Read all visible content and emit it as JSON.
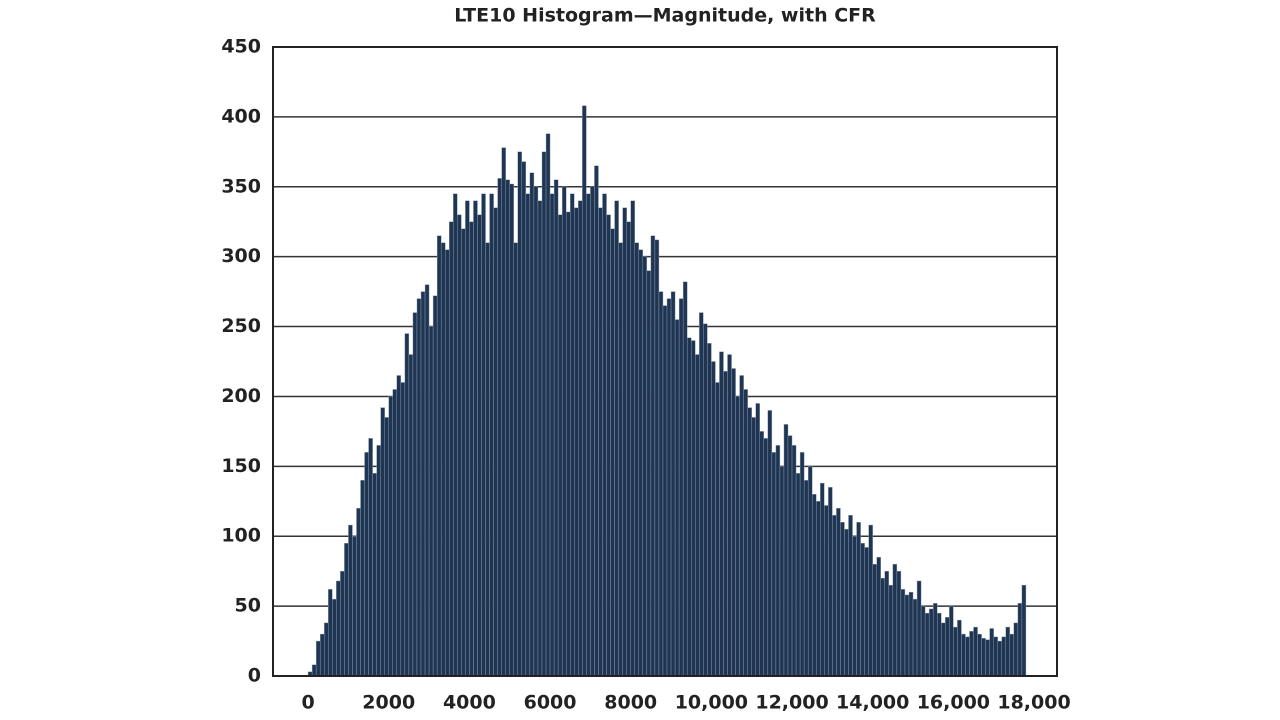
{
  "chart_data": {
    "type": "histogram",
    "title": "LTE10 Histogram—Magnitude, with CFR",
    "bins": [
      0,
      100,
      200,
      300,
      400,
      500,
      600,
      700,
      800,
      900,
      1000,
      1100,
      1200,
      1300,
      1400,
      1500,
      1600,
      1700,
      1800,
      1900,
      2000,
      2100,
      2200,
      2300,
      2400,
      2500,
      2600,
      2700,
      2800,
      2900,
      3000,
      3100,
      3200,
      3300,
      3400,
      3500,
      3600,
      3700,
      3800,
      3900,
      4000,
      4100,
      4200,
      4300,
      4400,
      4500,
      4600,
      4700,
      4800,
      4900,
      5000,
      5100,
      5200,
      5300,
      5400,
      5500,
      5600,
      5700,
      5800,
      5900,
      6000,
      6100,
      6200,
      6300,
      6400,
      6500,
      6600,
      6700,
      6800,
      6900,
      7000,
      7100,
      7200,
      7300,
      7400,
      7500,
      7600,
      7700,
      7800,
      7900,
      8000,
      8100,
      8200,
      8300,
      8400,
      8500,
      8600,
      8700,
      8800,
      8900,
      9000,
      9100,
      9200,
      9300,
      9400,
      9500,
      9600,
      9700,
      9800,
      9900,
      10000,
      10100,
      10200,
      10300,
      10400,
      10500,
      10600,
      10700,
      10800,
      10900,
      11000,
      11100,
      11200,
      11300,
      11400,
      11500,
      11600,
      11700,
      11800,
      11900,
      12000,
      12100,
      12200,
      12300,
      12400,
      12500,
      12600,
      12700,
      12800,
      12900,
      13000,
      13100,
      13200,
      13300,
      13400,
      13500,
      13600,
      13700,
      13800,
      13900,
      14000,
      14100,
      14200,
      14300,
      14400,
      14500,
      14600,
      14700,
      14800,
      14900,
      15000,
      15100,
      15200,
      15300,
      15400,
      15500,
      15600,
      15700,
      15800,
      15900,
      16000,
      16100,
      16200,
      16300,
      16400,
      16500,
      16600,
      16700,
      16800,
      16900,
      17000,
      17100,
      17200,
      17300,
      17400,
      17500,
      17600,
      17700,
      17800
    ],
    "values": [
      3,
      8,
      25,
      30,
      38,
      62,
      55,
      68,
      75,
      95,
      108,
      100,
      120,
      140,
      160,
      170,
      145,
      165,
      192,
      185,
      200,
      205,
      215,
      210,
      245,
      230,
      260,
      270,
      275,
      280,
      250,
      272,
      315,
      310,
      305,
      325,
      345,
      330,
      320,
      340,
      325,
      340,
      330,
      345,
      310,
      345,
      335,
      356,
      378,
      355,
      352,
      310,
      375,
      368,
      345,
      360,
      350,
      340,
      375,
      388,
      345,
      355,
      330,
      350,
      332,
      345,
      335,
      340,
      408,
      345,
      350,
      365,
      335,
      345,
      330,
      320,
      340,
      310,
      335,
      325,
      340,
      310,
      305,
      300,
      290,
      315,
      312,
      275,
      265,
      270,
      275,
      255,
      270,
      282,
      242,
      240,
      230,
      260,
      252,
      238,
      225,
      210,
      232,
      218,
      230,
      220,
      200,
      215,
      205,
      192,
      185,
      195,
      175,
      170,
      190,
      160,
      165,
      150,
      180,
      172,
      165,
      145,
      160,
      140,
      150,
      130,
      125,
      138,
      122,
      135,
      115,
      120,
      110,
      105,
      115,
      100,
      110,
      95,
      92,
      108,
      80,
      85,
      70,
      75,
      65,
      80,
      75,
      62,
      58,
      60,
      55,
      68,
      50,
      45,
      48,
      52,
      45,
      38,
      42,
      50,
      35,
      40,
      30,
      28,
      32,
      35,
      30,
      27,
      26,
      34,
      28,
      25,
      28,
      35,
      30,
      38,
      52,
      65
    ],
    "color": "#1f3552",
    "xlim": [
      -870,
      18570
    ],
    "ylim": [
      0,
      450
    ],
    "xticks": [
      0,
      2000,
      4000,
      6000,
      8000,
      {
        "value": 10000,
        "label": "10,000"
      },
      {
        "value": 12000,
        "label": "12,000"
      },
      {
        "value": 14000,
        "label": "14,000"
      },
      {
        "value": 16000,
        "label": "16,000"
      },
      {
        "value": 18000,
        "label": "18,000"
      }
    ],
    "yticks": [
      0,
      50,
      100,
      150,
      200,
      250,
      300,
      350,
      400,
      450
    ],
    "grid": true
  }
}
